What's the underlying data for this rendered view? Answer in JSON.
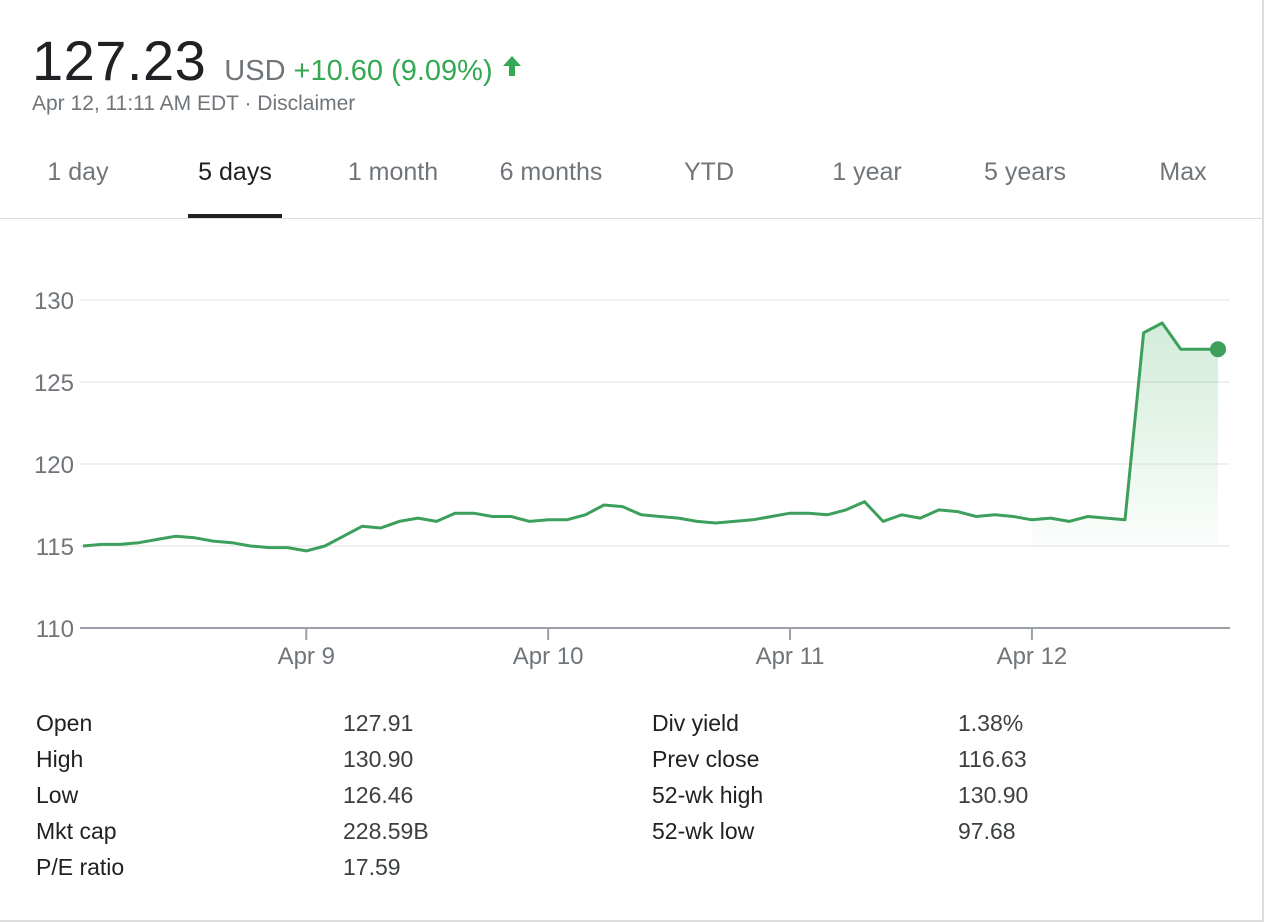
{
  "quote": {
    "price": "127.23",
    "currency": "USD",
    "change": "+10.60 (9.09%)",
    "direction": "up",
    "timestamp": "Apr 12, 11:11 AM EDT",
    "separator": " · ",
    "disclaimer": "Disclaimer"
  },
  "tabs": [
    {
      "label": "1 day",
      "active": false
    },
    {
      "label": "5 days",
      "active": true
    },
    {
      "label": "1 month",
      "active": false
    },
    {
      "label": "6 months",
      "active": false
    },
    {
      "label": "YTD",
      "active": false
    },
    {
      "label": "1 year",
      "active": false
    },
    {
      "label": "5 years",
      "active": false
    },
    {
      "label": "Max",
      "active": false
    }
  ],
  "colors": {
    "positive": "#34a853",
    "line": "#3d9f5c",
    "text_secondary": "#70757a"
  },
  "chart_data": {
    "type": "line",
    "ylim": [
      110,
      130
    ],
    "y_ticks": [
      "130",
      "125",
      "120",
      "115",
      "110"
    ],
    "y_tick_values": [
      130,
      125,
      120,
      115,
      110
    ],
    "x_tick_labels": [
      "Apr 9",
      "Apr 10",
      "Apr 11",
      "Apr 12"
    ],
    "x_tick_index": [
      12,
      25,
      38,
      51
    ],
    "fill_from_index": 51,
    "grid": true,
    "last_point_marker": true,
    "values": [
      115.0,
      115.1,
      115.1,
      115.2,
      115.4,
      115.6,
      115.5,
      115.3,
      115.2,
      115.0,
      114.9,
      114.9,
      114.7,
      115.0,
      115.6,
      116.2,
      116.1,
      116.5,
      116.7,
      116.5,
      117.0,
      117.0,
      116.8,
      116.8,
      116.5,
      116.6,
      116.6,
      116.9,
      117.5,
      117.4,
      116.9,
      116.8,
      116.7,
      116.5,
      116.4,
      116.5,
      116.6,
      116.8,
      117.0,
      117.0,
      116.9,
      117.2,
      117.7,
      116.5,
      116.9,
      116.7,
      117.2,
      117.1,
      116.8,
      116.9,
      116.8,
      116.6,
      116.7,
      116.5,
      116.8,
      116.7,
      116.6,
      128.0,
      128.6,
      127.0,
      127.0,
      127.0
    ]
  },
  "stats": {
    "left": [
      {
        "label": "Open",
        "value": "127.91"
      },
      {
        "label": "High",
        "value": "130.90"
      },
      {
        "label": "Low",
        "value": "126.46"
      },
      {
        "label": "Mkt cap",
        "value": "228.59B"
      },
      {
        "label": "P/E ratio",
        "value": "17.59"
      }
    ],
    "right": [
      {
        "label": "Div yield",
        "value": "1.38%"
      },
      {
        "label": "Prev close",
        "value": "116.63"
      },
      {
        "label": "52-wk high",
        "value": "130.90"
      },
      {
        "label": "52-wk low",
        "value": "97.68"
      }
    ]
  }
}
